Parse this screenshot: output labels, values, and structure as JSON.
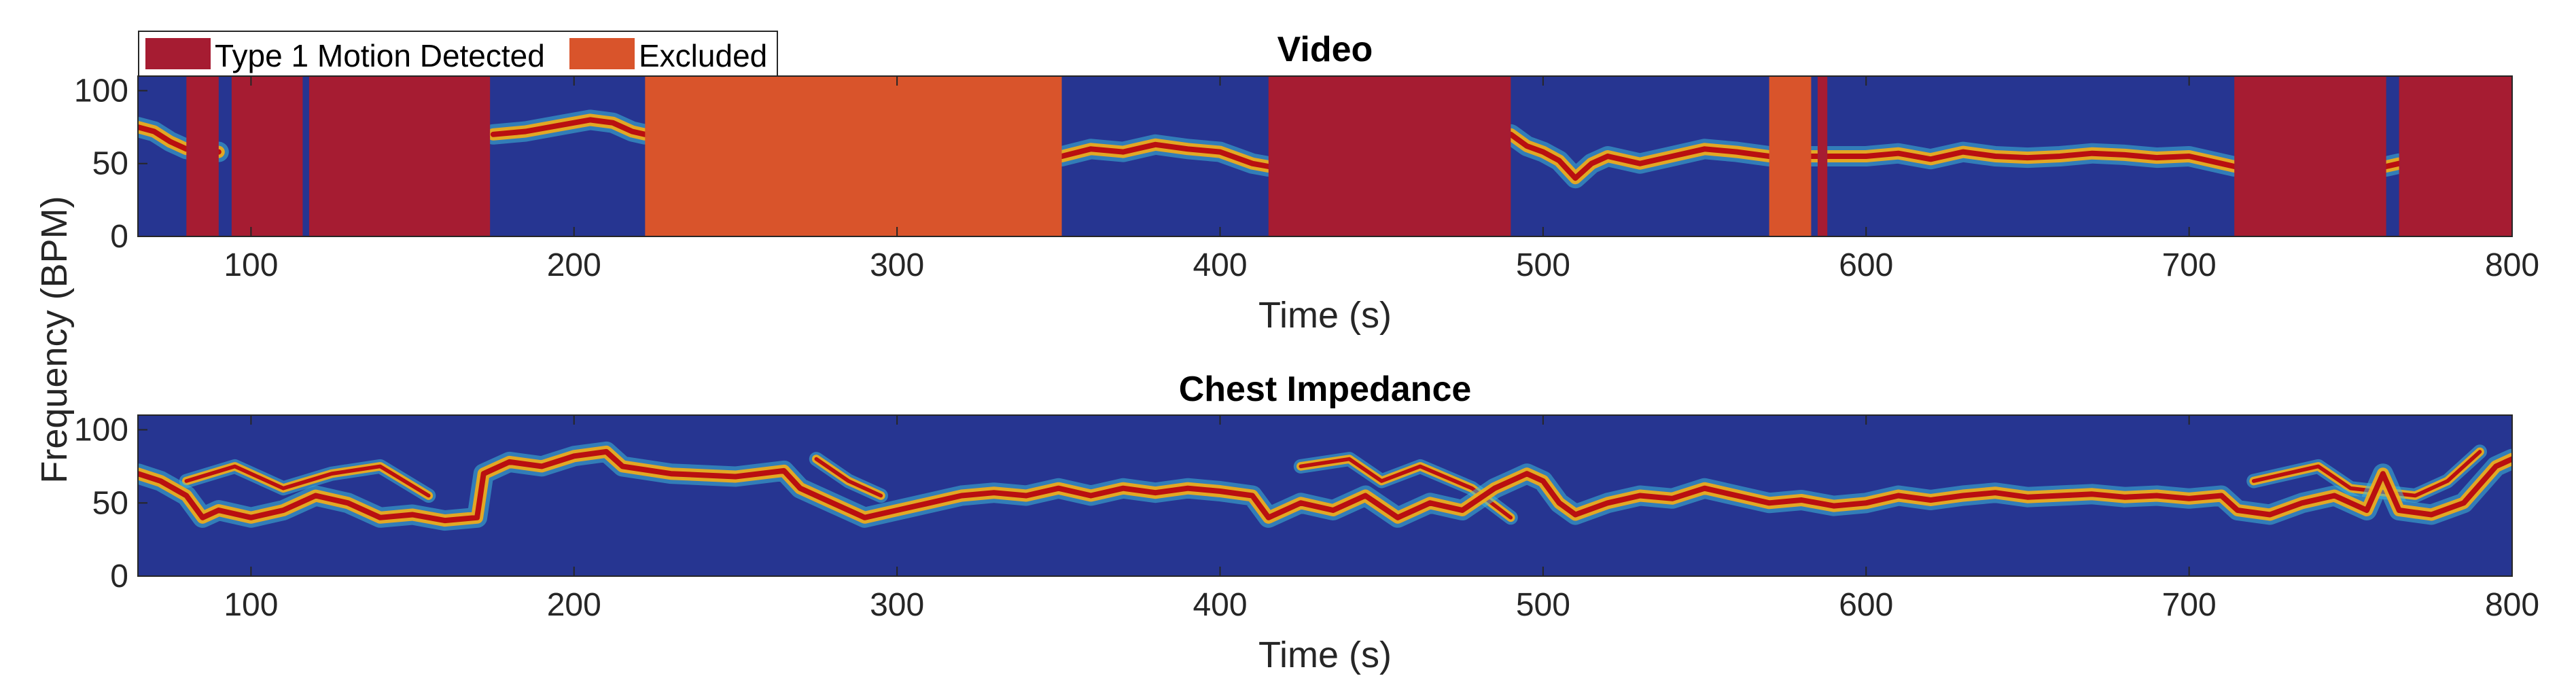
{
  "colors": {
    "background": "#263591",
    "motion": "#a61c32",
    "excluded": "#d9542b",
    "ridge_core": "#b90f10",
    "ridge_mid": "#f5ad14",
    "ridge_outer": "#3db8d8",
    "axis": "#262626"
  },
  "legend": {
    "items": [
      {
        "label": "Type 1 Motion Detected",
        "color": "#a61c32"
      },
      {
        "label": "Excluded",
        "color": "#d9542b"
      }
    ]
  },
  "ylabel": "Frequency (BPM)",
  "chart_data": [
    {
      "type": "heatmap",
      "title": "Video",
      "xlabel": "Time (s)",
      "ylabel": "Frequency (BPM)",
      "xlim": [
        65,
        800
      ],
      "ylim": [
        0,
        110
      ],
      "xticks": [
        100,
        200,
        300,
        400,
        500,
        600,
        700,
        800
      ],
      "yticks": [
        0,
        50,
        100
      ],
      "motion_segments": [
        [
          80,
          90
        ],
        [
          94,
          116
        ],
        [
          118,
          174
        ],
        [
          415,
          490
        ],
        [
          585,
          588
        ],
        [
          714,
          761
        ],
        [
          765,
          800
        ]
      ],
      "excluded_segments": [
        [
          222,
          351
        ],
        [
          570,
          583
        ]
      ],
      "ridge": [
        [
          65,
          75
        ],
        [
          70,
          72
        ],
        [
          75,
          65
        ],
        [
          80,
          60
        ],
        [
          90,
          58
        ],
        [
          175,
          70
        ],
        [
          185,
          72
        ],
        [
          195,
          76
        ],
        [
          205,
          80
        ],
        [
          212,
          78
        ],
        [
          218,
          72
        ],
        [
          222,
          70
        ],
        [
          351,
          55
        ],
        [
          360,
          60
        ],
        [
          370,
          58
        ],
        [
          380,
          63
        ],
        [
          390,
          60
        ],
        [
          400,
          58
        ],
        [
          410,
          50
        ],
        [
          415,
          48
        ],
        [
          490,
          70
        ],
        [
          495,
          62
        ],
        [
          500,
          58
        ],
        [
          505,
          52
        ],
        [
          510,
          40
        ],
        [
          515,
          50
        ],
        [
          520,
          55
        ],
        [
          530,
          50
        ],
        [
          540,
          55
        ],
        [
          550,
          60
        ],
        [
          560,
          58
        ],
        [
          570,
          55
        ],
        [
          588,
          55
        ],
        [
          600,
          55
        ],
        [
          610,
          57
        ],
        [
          620,
          53
        ],
        [
          630,
          58
        ],
        [
          640,
          55
        ],
        [
          650,
          54
        ],
        [
          660,
          55
        ],
        [
          670,
          57
        ],
        [
          680,
          56
        ],
        [
          690,
          54
        ],
        [
          700,
          55
        ],
        [
          710,
          50
        ],
        [
          714,
          48
        ],
        [
          761,
          48
        ],
        [
          765,
          50
        ]
      ]
    },
    {
      "type": "heatmap",
      "title": "Chest Impedance",
      "xlabel": "Time (s)",
      "ylabel": "Frequency (BPM)",
      "xlim": [
        65,
        800
      ],
      "ylim": [
        0,
        110
      ],
      "xticks": [
        100,
        200,
        300,
        400,
        500,
        600,
        700,
        800
      ],
      "yticks": [
        0,
        50,
        100
      ],
      "ridge": [
        [
          65,
          70
        ],
        [
          72,
          65
        ],
        [
          80,
          55
        ],
        [
          85,
          40
        ],
        [
          90,
          45
        ],
        [
          100,
          40
        ],
        [
          110,
          45
        ],
        [
          120,
          55
        ],
        [
          130,
          50
        ],
        [
          140,
          40
        ],
        [
          150,
          42
        ],
        [
          160,
          38
        ],
        [
          170,
          40
        ],
        [
          172,
          70
        ],
        [
          180,
          78
        ],
        [
          190,
          75
        ],
        [
          200,
          82
        ],
        [
          210,
          85
        ],
        [
          215,
          75
        ],
        [
          230,
          70
        ],
        [
          250,
          68
        ],
        [
          265,
          72
        ],
        [
          270,
          60
        ],
        [
          280,
          50
        ],
        [
          290,
          40
        ],
        [
          300,
          45
        ],
        [
          310,
          50
        ],
        [
          320,
          55
        ],
        [
          330,
          57
        ],
        [
          340,
          55
        ],
        [
          350,
          60
        ],
        [
          360,
          55
        ],
        [
          370,
          60
        ],
        [
          380,
          57
        ],
        [
          390,
          60
        ],
        [
          400,
          58
        ],
        [
          410,
          55
        ],
        [
          415,
          40
        ],
        [
          425,
          50
        ],
        [
          435,
          45
        ],
        [
          445,
          55
        ],
        [
          455,
          40
        ],
        [
          465,
          50
        ],
        [
          475,
          45
        ],
        [
          485,
          60
        ],
        [
          490,
          65
        ],
        [
          495,
          70
        ],
        [
          500,
          65
        ],
        [
          505,
          50
        ],
        [
          510,
          42
        ],
        [
          520,
          50
        ],
        [
          530,
          55
        ],
        [
          540,
          53
        ],
        [
          550,
          60
        ],
        [
          560,
          55
        ],
        [
          570,
          50
        ],
        [
          580,
          52
        ],
        [
          590,
          48
        ],
        [
          600,
          50
        ],
        [
          610,
          55
        ],
        [
          620,
          52
        ],
        [
          630,
          55
        ],
        [
          640,
          57
        ],
        [
          650,
          54
        ],
        [
          660,
          55
        ],
        [
          670,
          56
        ],
        [
          680,
          54
        ],
        [
          690,
          55
        ],
        [
          700,
          53
        ],
        [
          710,
          55
        ],
        [
          715,
          45
        ],
        [
          725,
          42
        ],
        [
          735,
          50
        ],
        [
          745,
          55
        ],
        [
          755,
          45
        ],
        [
          760,
          70
        ],
        [
          765,
          45
        ],
        [
          775,
          42
        ],
        [
          785,
          50
        ],
        [
          795,
          75
        ],
        [
          800,
          80
        ]
      ],
      "secondary": [
        [
          80,
          65
        ],
        [
          95,
          75
        ],
        [
          110,
          60
        ],
        [
          125,
          70
        ],
        [
          140,
          75
        ],
        [
          155,
          55
        ],
        [
          275,
          80
        ],
        [
          285,
          65
        ],
        [
          295,
          55
        ],
        [
          425,
          75
        ],
        [
          440,
          80
        ],
        [
          450,
          65
        ],
        [
          462,
          75
        ],
        [
          478,
          60
        ],
        [
          490,
          40
        ],
        [
          720,
          65
        ],
        [
          740,
          75
        ],
        [
          750,
          60
        ],
        [
          770,
          55
        ],
        [
          780,
          65
        ],
        [
          790,
          85
        ]
      ]
    }
  ]
}
